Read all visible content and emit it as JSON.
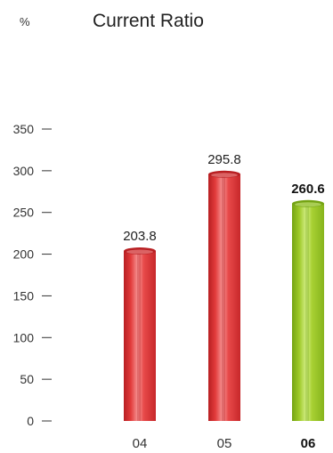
{
  "chart_data": {
    "type": "bar",
    "title": "Current Ratio",
    "unit": "%",
    "categories": [
      "04",
      "05",
      "06"
    ],
    "values": [
      203.8,
      295.8,
      260.6
    ],
    "value_labels": [
      "203.8",
      "295.8",
      "260.6"
    ],
    "highlight_index": 2,
    "ylim": [
      0,
      350
    ],
    "yticks": [
      0,
      50,
      100,
      150,
      200,
      250,
      300,
      350
    ],
    "grid": false,
    "legend": "none",
    "colors": {
      "bar_default": "#e23b3b",
      "bar_default_light": "#f79a9a",
      "bar_default_dark": "#b81f22",
      "bar_highlight": "#9dc927",
      "bar_highlight_light": "#d6f08a",
      "bar_highlight_dark": "#74a313"
    }
  }
}
